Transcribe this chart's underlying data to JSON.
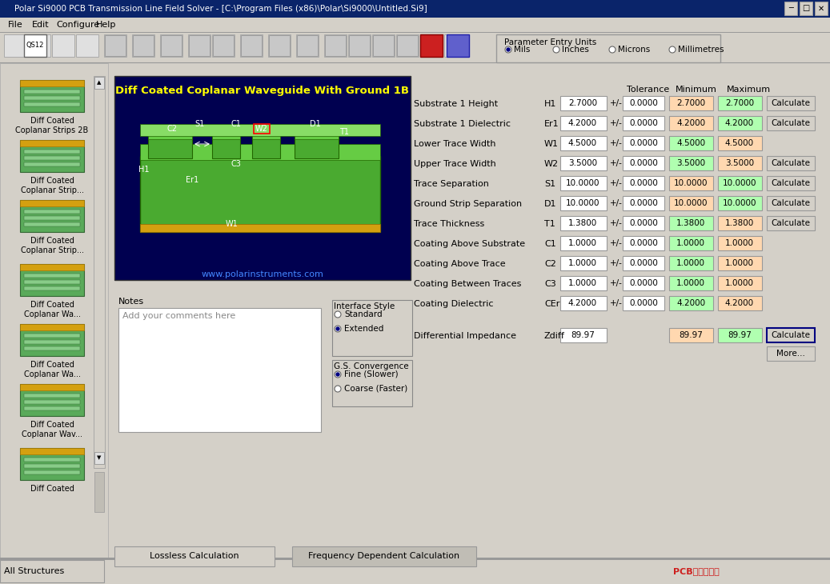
{
  "title_bar": "Polar Si9000 PCB Transmission Line Field Solver - [C:\\Program Files (x86)\\Polar\\Si9000\\Untitled.Si9]",
  "menu_items": [
    "File",
    "Edit",
    "Configure",
    "Help"
  ],
  "bg_color": "#d4d0c8",
  "window_bg": "#ffffff",
  "title_bg": "#0a246a",
  "title_fg": "#ffffff",
  "param_entries": [
    {
      "label": "Substrate 1 Height",
      "sym": "H1",
      "value": "2.7000",
      "tol": "0.0000",
      "min": "2.7000",
      "max": "2.7000",
      "has_calc": true,
      "min_color": "#ffd8b0",
      "max_color": "#b0ffb0"
    },
    {
      "label": "Substrate 1 Dielectric",
      "sym": "Er1",
      "value": "4.2000",
      "tol": "0.0000",
      "min": "4.2000",
      "max": "4.2000",
      "has_calc": true,
      "min_color": "#ffd8b0",
      "max_color": "#b0ffb0"
    },
    {
      "label": "Lower Trace Width",
      "sym": "W1",
      "value": "4.5000",
      "tol": "0.0000",
      "min": "4.5000",
      "max": "4.5000",
      "has_calc": false,
      "min_color": "#b0ffb0",
      "max_color": "#ffd8b0"
    },
    {
      "label": "Upper Trace Width",
      "sym": "W2",
      "value": "3.5000",
      "tol": "0.0000",
      "min": "3.5000",
      "max": "3.5000",
      "has_calc": true,
      "min_color": "#b0ffb0",
      "max_color": "#ffd8b0"
    },
    {
      "label": "Trace Separation",
      "sym": "S1",
      "value": "10.0000",
      "tol": "0.0000",
      "min": "10.0000",
      "max": "10.0000",
      "has_calc": true,
      "min_color": "#ffd8b0",
      "max_color": "#b0ffb0"
    },
    {
      "label": "Ground Strip Separation",
      "sym": "D1",
      "value": "10.0000",
      "tol": "0.0000",
      "min": "10.0000",
      "max": "10.0000",
      "has_calc": true,
      "min_color": "#ffd8b0",
      "max_color": "#b0ffb0"
    },
    {
      "label": "Trace Thickness",
      "sym": "T1",
      "value": "1.3800",
      "tol": "0.0000",
      "min": "1.3800",
      "max": "1.3800",
      "has_calc": true,
      "min_color": "#b0ffb0",
      "max_color": "#ffd8b0"
    },
    {
      "label": "Coating Above Substrate",
      "sym": "C1",
      "value": "1.0000",
      "tol": "0.0000",
      "min": "1.0000",
      "max": "1.0000",
      "has_calc": false,
      "min_color": "#b0ffb0",
      "max_color": "#ffd8b0"
    },
    {
      "label": "Coating Above Trace",
      "sym": "C2",
      "value": "1.0000",
      "tol": "0.0000",
      "min": "1.0000",
      "max": "1.0000",
      "has_calc": false,
      "min_color": "#b0ffb0",
      "max_color": "#ffd8b0"
    },
    {
      "label": "Coating Between Traces",
      "sym": "C3",
      "value": "1.0000",
      "tol": "0.0000",
      "min": "1.0000",
      "max": "1.0000",
      "has_calc": false,
      "min_color": "#b0ffb0",
      "max_color": "#ffd8b0"
    },
    {
      "label": "Coating Dielectric",
      "sym": "CEr",
      "value": "4.2000",
      "tol": "0.0000",
      "min": "4.2000",
      "max": "4.2000",
      "has_calc": false,
      "min_color": "#b0ffb0",
      "max_color": "#ffd8b0"
    }
  ],
  "diff_imp": {
    "label": "Differential Impedance",
    "sym": "Zdiff",
    "value": "89.97",
    "min": "89.97",
    "max": "89.97",
    "min_color": "#ffd8b0",
    "max_color": "#b0ffb0"
  },
  "col_headers": [
    "Tolerance",
    "Minimum",
    "Maximum"
  ],
  "param_units_label": "Parameter Entry Units",
  "radio_units": [
    "Mils",
    "Inches",
    "Microns",
    "Millimetres"
  ],
  "selected_unit": "Mils",
  "notes_label": "Notes",
  "notes_text": "Add your comments here",
  "interface_label": "Interface Style",
  "interface_opts": [
    "Standard",
    "Extended"
  ],
  "selected_interface": "Extended",
  "gs_label": "G.S. Convergence",
  "gs_opts": [
    "Fine (Slower)",
    "Coarse (Faster)"
  ],
  "selected_gs": "Fine (Slower)",
  "tab1": "Lossless Calculation",
  "tab2": "Frequency Dependent Calculation",
  "status_bar": "All Structures",
  "diagram_title": "Diff Coated Coplanar Waveguide With Ground 1B",
  "diagram_url": "www.polarinstruments.com",
  "sidebar_items": [
    "Diff Coated\nCoplanar Strips 2B",
    "Diff Coated\nCoplanar Strip...",
    "Diff Coated\nCoplanar Strip...",
    "Diff Coated\nCoplanar Wa...",
    "Diff Coated\nCoplanar Wa...",
    "Diff Coated\nCoplanar Wav...",
    "Diff Coated"
  ]
}
